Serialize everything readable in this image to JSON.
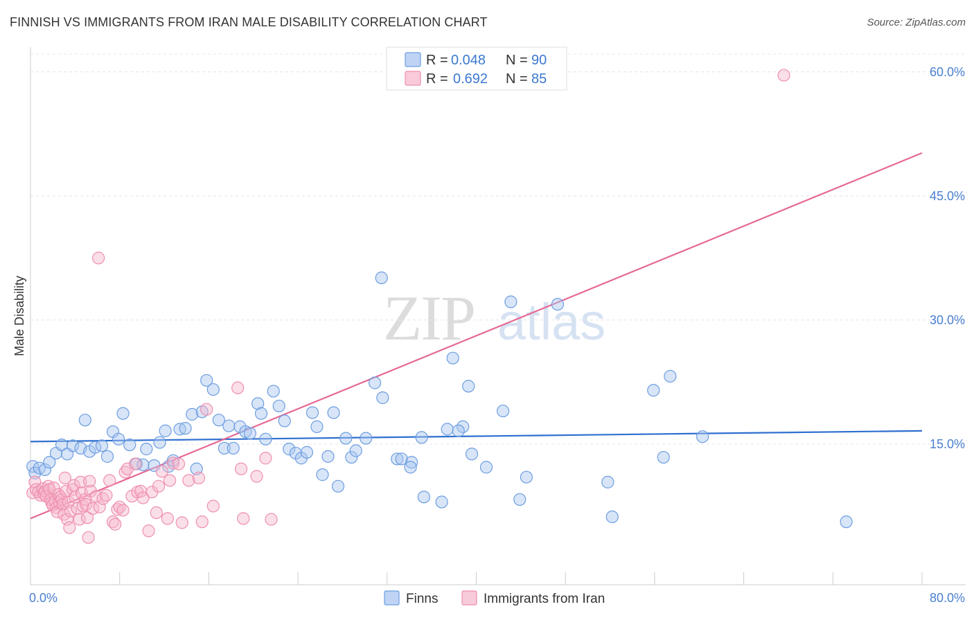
{
  "title": "FINNISH VS IMMIGRANTS FROM IRAN MALE DISABILITY CORRELATION CHART",
  "source": "Source: ZipAtlas.com",
  "watermark": {
    "part1": "ZIP",
    "part2": "atlas"
  },
  "colors": {
    "finns_fill": "#a9c6f0",
    "finns_stroke": "#6c9de0",
    "finns_line": "#2f6fd0",
    "iran_fill": "#f7b8cc",
    "iran_stroke": "#ee8fae",
    "iran_line": "#e66895",
    "tick": "#4a7fd0",
    "grid": "#e4e4e4"
  },
  "chart_data": {
    "type": "scatter",
    "title": "FINNISH VS IMMIGRANTS FROM IRAN MALE DISABILITY CORRELATION CHART",
    "xlabel": "",
    "ylabel": "Male Disability",
    "xlim": [
      0,
      80
    ],
    "ylim": [
      0,
      63
    ],
    "y_ticks": [
      {
        "value": 15,
        "label": "15.0%"
      },
      {
        "value": 30,
        "label": "30.0%"
      },
      {
        "value": 45,
        "label": "45.0%"
      },
      {
        "value": 60,
        "label": "60.0%"
      }
    ],
    "x_tick_labels": [
      {
        "value": 0,
        "label": "0.0%"
      },
      {
        "value": 80,
        "label": "80.0%"
      }
    ],
    "x_minor_ticks": [
      8,
      16,
      24,
      32,
      40,
      48,
      56,
      64,
      72,
      80
    ],
    "legend": {
      "rows": [
        {
          "r_label": "R = ",
          "r_value": "0.048",
          "n_label": "N = ",
          "n_value": "90"
        },
        {
          "r_label": "R = ",
          "r_value": "0.692",
          "n_label": "N = ",
          "n_value": "85"
        }
      ]
    },
    "series": [
      {
        "name": "Finns",
        "trend": {
          "x": [
            0,
            80
          ],
          "y": [
            15.3,
            16.6
          ]
        },
        "points": [
          [
            0.2,
            12.3
          ],
          [
            0.4,
            11.5
          ],
          [
            0.8,
            12.1
          ],
          [
            1.3,
            11.9
          ],
          [
            1.7,
            12.8
          ],
          [
            2.3,
            13.9
          ],
          [
            2.8,
            14.9
          ],
          [
            3.3,
            13.8
          ],
          [
            3.8,
            14.8
          ],
          [
            4.5,
            14.5
          ],
          [
            4.9,
            17.9
          ],
          [
            5.3,
            14.1
          ],
          [
            5.8,
            14.6
          ],
          [
            6.4,
            14.8
          ],
          [
            6.9,
            13.5
          ],
          [
            7.4,
            16.5
          ],
          [
            7.9,
            15.6
          ],
          [
            8.3,
            18.7
          ],
          [
            8.9,
            14.9
          ],
          [
            9.5,
            12.6
          ],
          [
            10.1,
            12.5
          ],
          [
            10.4,
            14.4
          ],
          [
            11.1,
            12.4
          ],
          [
            11.6,
            15.2
          ],
          [
            12.1,
            16.6
          ],
          [
            12.4,
            12.3
          ],
          [
            12.8,
            13.0
          ],
          [
            13.4,
            16.8
          ],
          [
            13.9,
            16.9
          ],
          [
            14.5,
            18.6
          ],
          [
            14.9,
            12.0
          ],
          [
            15.4,
            18.9
          ],
          [
            15.8,
            22.7
          ],
          [
            16.4,
            21.6
          ],
          [
            16.9,
            17.9
          ],
          [
            17.4,
            14.5
          ],
          [
            17.8,
            17.2
          ],
          [
            18.2,
            14.5
          ],
          [
            18.8,
            17.1
          ],
          [
            19.3,
            16.5
          ],
          [
            19.7,
            16.3
          ],
          [
            20.4,
            19.9
          ],
          [
            20.7,
            18.7
          ],
          [
            21.1,
            15.6
          ],
          [
            21.8,
            21.4
          ],
          [
            22.3,
            19.6
          ],
          [
            22.8,
            17.8
          ],
          [
            23.2,
            14.4
          ],
          [
            23.8,
            13.9
          ],
          [
            24.3,
            13.3
          ],
          [
            24.8,
            14.0
          ],
          [
            25.3,
            18.8
          ],
          [
            25.7,
            17.1
          ],
          [
            26.2,
            11.3
          ],
          [
            26.7,
            13.5
          ],
          [
            27.2,
            18.8
          ],
          [
            27.6,
            9.9
          ],
          [
            28.3,
            15.7
          ],
          [
            28.8,
            13.4
          ],
          [
            29.2,
            14.2
          ],
          [
            30.1,
            15.7
          ],
          [
            30.9,
            22.4
          ],
          [
            31.6,
            20.6
          ],
          [
            31.5,
            35.1
          ],
          [
            32.9,
            13.2
          ],
          [
            33.3,
            13.2
          ],
          [
            34.2,
            12.8
          ],
          [
            34.1,
            12.2
          ],
          [
            35.1,
            15.8
          ],
          [
            35.3,
            8.6
          ],
          [
            36.9,
            8.0
          ],
          [
            37.4,
            16.8
          ],
          [
            37.9,
            25.4
          ],
          [
            38.8,
            17.1
          ],
          [
            38.4,
            16.6
          ],
          [
            39.3,
            22.0
          ],
          [
            39.6,
            13.8
          ],
          [
            40.9,
            12.2
          ],
          [
            42.4,
            19.0
          ],
          [
            43.1,
            32.2
          ],
          [
            43.9,
            8.3
          ],
          [
            44.5,
            11.0
          ],
          [
            47.3,
            31.9
          ],
          [
            51.8,
            10.4
          ],
          [
            52.2,
            6.2
          ],
          [
            55.9,
            21.5
          ],
          [
            56.8,
            13.4
          ],
          [
            57.4,
            23.2
          ],
          [
            60.3,
            15.9
          ],
          [
            73.2,
            5.6
          ]
        ]
      },
      {
        "name": "Immigrants from Iran",
        "trend": {
          "x": [
            0,
            80
          ],
          "y": [
            6.0,
            50.2
          ]
        },
        "points": [
          [
            0.2,
            9.1
          ],
          [
            0.4,
            10.4
          ],
          [
            0.5,
            9.5
          ],
          [
            0.7,
            9.2
          ],
          [
            0.9,
            8.8
          ],
          [
            1.1,
            9.6
          ],
          [
            1.2,
            9.0
          ],
          [
            1.3,
            9.3
          ],
          [
            1.4,
            8.7
          ],
          [
            1.6,
            9.9
          ],
          [
            1.7,
            9.5
          ],
          [
            1.8,
            8.3
          ],
          [
            1.9,
            7.9
          ],
          [
            2.0,
            7.6
          ],
          [
            2.1,
            9.7
          ],
          [
            2.2,
            8.1
          ],
          [
            2.3,
            7.3
          ],
          [
            2.4,
            6.8
          ],
          [
            2.5,
            8.9
          ],
          [
            2.6,
            7.9
          ],
          [
            2.7,
            8.6
          ],
          [
            2.8,
            8.3
          ],
          [
            2.9,
            7.7
          ],
          [
            3.0,
            6.5
          ],
          [
            3.1,
            10.9
          ],
          [
            3.2,
            9.3
          ],
          [
            3.3,
            5.9
          ],
          [
            3.4,
            8.0
          ],
          [
            3.5,
            4.9
          ],
          [
            3.6,
            6.9
          ],
          [
            3.8,
            9.5
          ],
          [
            3.9,
            10.0
          ],
          [
            4.0,
            8.6
          ],
          [
            4.2,
            7.2
          ],
          [
            4.4,
            5.9
          ],
          [
            4.5,
            10.4
          ],
          [
            4.6,
            9.1
          ],
          [
            4.7,
            7.5
          ],
          [
            4.9,
            8.3
          ],
          [
            5.0,
            7.7
          ],
          [
            5.1,
            6.1
          ],
          [
            5.2,
            3.7
          ],
          [
            5.3,
            10.5
          ],
          [
            5.4,
            9.3
          ],
          [
            5.6,
            7.2
          ],
          [
            5.9,
            8.7
          ],
          [
            6.1,
            37.5
          ],
          [
            6.2,
            7.4
          ],
          [
            6.5,
            8.4
          ],
          [
            6.8,
            8.8
          ],
          [
            7.1,
            10.6
          ],
          [
            7.4,
            5.6
          ],
          [
            7.6,
            5.3
          ],
          [
            7.8,
            7.1
          ],
          [
            8.0,
            7.4
          ],
          [
            8.3,
            7.0
          ],
          [
            8.5,
            11.6
          ],
          [
            8.7,
            12.0
          ],
          [
            9.1,
            8.7
          ],
          [
            9.4,
            12.6
          ],
          [
            9.6,
            9.2
          ],
          [
            9.9,
            9.3
          ],
          [
            10.1,
            8.5
          ],
          [
            10.6,
            4.5
          ],
          [
            10.9,
            9.2
          ],
          [
            11.3,
            6.7
          ],
          [
            11.5,
            9.9
          ],
          [
            11.8,
            11.7
          ],
          [
            12.3,
            6.0
          ],
          [
            12.5,
            10.6
          ],
          [
            12.8,
            12.7
          ],
          [
            13.3,
            12.6
          ],
          [
            13.6,
            5.5
          ],
          [
            14.2,
            10.6
          ],
          [
            15.1,
            10.9
          ],
          [
            15.4,
            5.6
          ],
          [
            15.8,
            19.2
          ],
          [
            16.4,
            7.5
          ],
          [
            18.6,
            21.8
          ],
          [
            18.9,
            12.0
          ],
          [
            19.1,
            6.0
          ],
          [
            20.3,
            11.1
          ],
          [
            21.1,
            13.3
          ],
          [
            21.6,
            5.9
          ],
          [
            67.6,
            59.6
          ]
        ]
      }
    ]
  }
}
